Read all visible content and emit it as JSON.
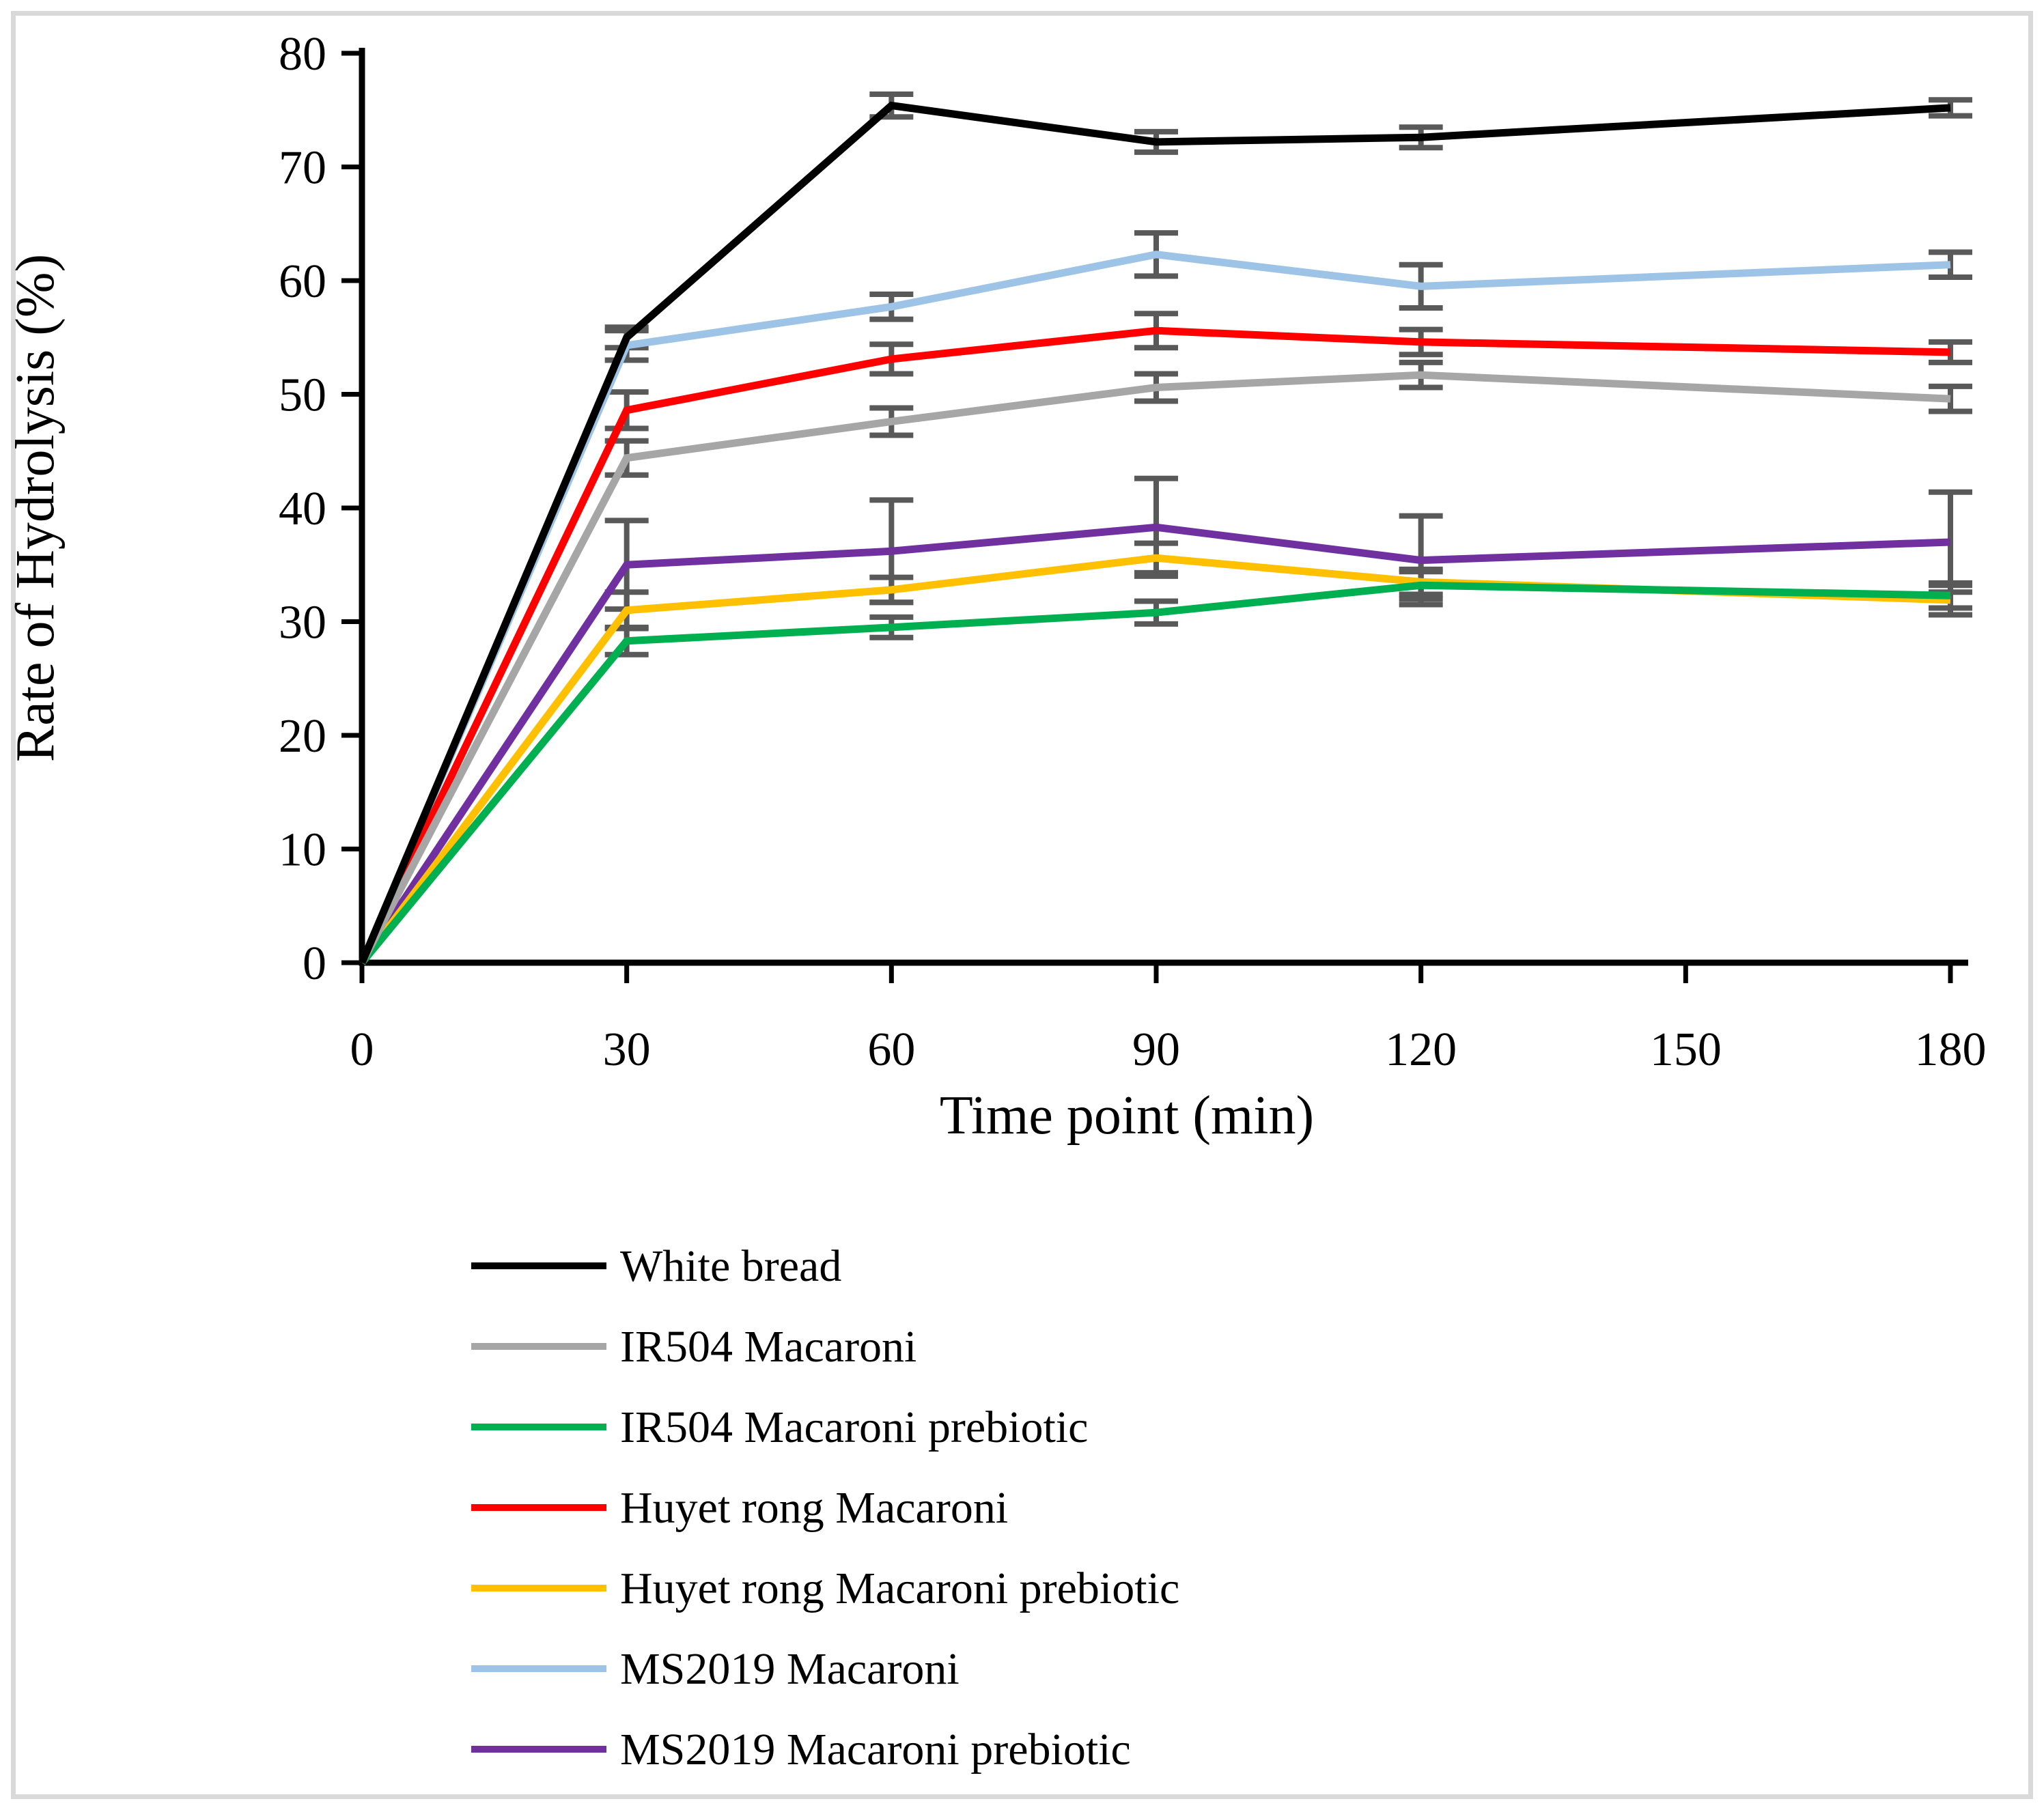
{
  "figure": {
    "background": "#FFFFFF",
    "border_color": "#D9D9D9"
  },
  "chart_data": {
    "type": "line",
    "title": "",
    "xlabel": "Time point (min)",
    "ylabel": "Rate of Hydrolysis (%)",
    "x": [
      0,
      30,
      60,
      90,
      120,
      180
    ],
    "x_ticks": [
      0,
      30,
      60,
      90,
      120,
      150,
      180
    ],
    "y_ticks": [
      0,
      10,
      20,
      30,
      40,
      50,
      60,
      70,
      80
    ],
    "xlim": [
      0,
      180
    ],
    "ylim": [
      0,
      80
    ],
    "grid": false,
    "axis_color": "#000000",
    "error_bar_color": "#595959",
    "legend_position": "bottom-left",
    "series": [
      {
        "name": "White bread",
        "color": "#000000",
        "values": [
          0,
          55.0,
          75.4,
          72.2,
          72.6,
          75.2
        ],
        "errors": [
          0,
          0.9,
          1.0,
          0.9,
          0.9,
          0.7
        ]
      },
      {
        "name": "IR504 Macaroni",
        "color": "#A6A6A6",
        "values": [
          0,
          44.4,
          47.6,
          50.6,
          51.7,
          49.6
        ],
        "errors": [
          0,
          1.5,
          1.2,
          1.2,
          1.1,
          1.1
        ]
      },
      {
        "name": "IR504 Macaroni prebiotic",
        "color": "#00B050",
        "values": [
          0,
          28.3,
          29.5,
          30.8,
          33.2,
          32.3
        ],
        "errors": [
          0,
          1.2,
          0.9,
          1.0,
          1.2,
          1.1
        ]
      },
      {
        "name": "Huyet rong Macaroni",
        "color": "#FF0000",
        "values": [
          0,
          48.6,
          53.1,
          55.6,
          54.6,
          53.7
        ],
        "errors": [
          0,
          1.6,
          1.3,
          1.5,
          1.1,
          0.9
        ]
      },
      {
        "name": "Huyet rong Macaroni prebiotic",
        "color": "#FFC000",
        "values": [
          0,
          31.0,
          32.8,
          35.6,
          33.5,
          31.9
        ],
        "errors": [
          0,
          1.6,
          1.1,
          1.3,
          1.1,
          1.3
        ]
      },
      {
        "name": "MS2019 Macaroni",
        "color": "#9DC3E6",
        "values": [
          0,
          54.3,
          57.7,
          62.3,
          59.5,
          61.4
        ],
        "errors": [
          0,
          1.3,
          1.1,
          1.9,
          1.9,
          1.1
        ]
      },
      {
        "name": "MS2019 Macaroni prebiotic",
        "color": "#7030A0",
        "values": [
          0,
          35.0,
          36.2,
          38.3,
          35.4,
          37.0
        ],
        "errors": [
          0,
          3.9,
          4.5,
          4.3,
          3.9,
          4.4
        ]
      }
    ]
  }
}
